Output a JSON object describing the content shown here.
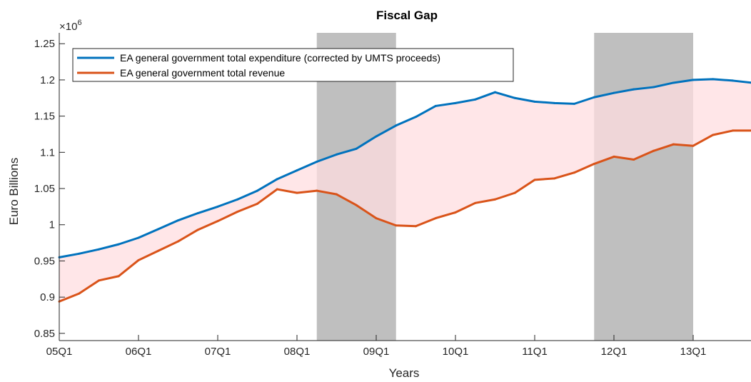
{
  "chart_data": {
    "type": "line",
    "title": "Fiscal Gap",
    "xlabel": "Years",
    "ylabel": "Euro Billions",
    "y_exponent_label": "×10",
    "y_exponent_power": "6",
    "ylim": [
      0.84,
      1.265
    ],
    "yticks": [
      0.85,
      0.9,
      0.95,
      1,
      1.05,
      1.1,
      1.15,
      1.2,
      1.25
    ],
    "ytick_labels": [
      "0.85",
      "0.9",
      "0.95",
      "1",
      "1.05",
      "1.1",
      "1.15",
      "1.2",
      "1.25"
    ],
    "x": [
      "05Q1",
      "05Q2",
      "05Q3",
      "05Q4",
      "06Q1",
      "06Q2",
      "06Q3",
      "06Q4",
      "07Q1",
      "07Q2",
      "07Q3",
      "07Q4",
      "08Q1",
      "08Q2",
      "08Q3",
      "08Q4",
      "09Q1",
      "09Q2",
      "09Q3",
      "09Q4",
      "10Q1",
      "10Q2",
      "10Q3",
      "10Q4",
      "11Q1",
      "11Q2",
      "11Q3",
      "11Q4",
      "12Q1",
      "12Q2",
      "12Q3",
      "12Q4",
      "13Q1",
      "13Q2",
      "13Q3",
      "13Q4"
    ],
    "xtick_labels": [
      "05Q1",
      "06Q1",
      "07Q1",
      "08Q1",
      "09Q1",
      "10Q1",
      "11Q1",
      "12Q1",
      "13Q1"
    ],
    "shaded_periods": [
      [
        "08Q2",
        "09Q2"
      ],
      [
        "11Q4",
        "13Q1"
      ]
    ],
    "shaded_color": "#bfbfbf",
    "fill_between": {
      "color": "#ffdde0"
    },
    "legend_position": "top-left",
    "grid": false,
    "series": [
      {
        "name": "EA general government total expenditure (corrected by UMTS proceeds)",
        "color": "#0072bd",
        "values": [
          0.955,
          0.96,
          0.966,
          0.973,
          0.982,
          0.994,
          1.006,
          1.016,
          1.025,
          1.035,
          1.047,
          1.063,
          1.075,
          1.087,
          1.097,
          1.105,
          1.122,
          1.137,
          1.149,
          1.164,
          1.168,
          1.173,
          1.183,
          1.175,
          1.17,
          1.168,
          1.167,
          1.176,
          1.182,
          1.187,
          1.19,
          1.196,
          1.2,
          1.201,
          1.199,
          1.196
        ]
      },
      {
        "name": "EA general government total revenue",
        "color": "#d95319",
        "values": [
          0.894,
          0.905,
          0.923,
          0.929,
          0.951,
          0.964,
          0.977,
          0.993,
          1.005,
          1.018,
          1.029,
          1.049,
          1.044,
          1.047,
          1.042,
          1.027,
          1.009,
          0.999,
          0.998,
          1.009,
          1.017,
          1.03,
          1.035,
          1.044,
          1.062,
          1.064,
          1.072,
          1.084,
          1.094,
          1.09,
          1.102,
          1.111,
          1.109,
          1.124,
          1.13,
          1.13
        ]
      }
    ]
  }
}
